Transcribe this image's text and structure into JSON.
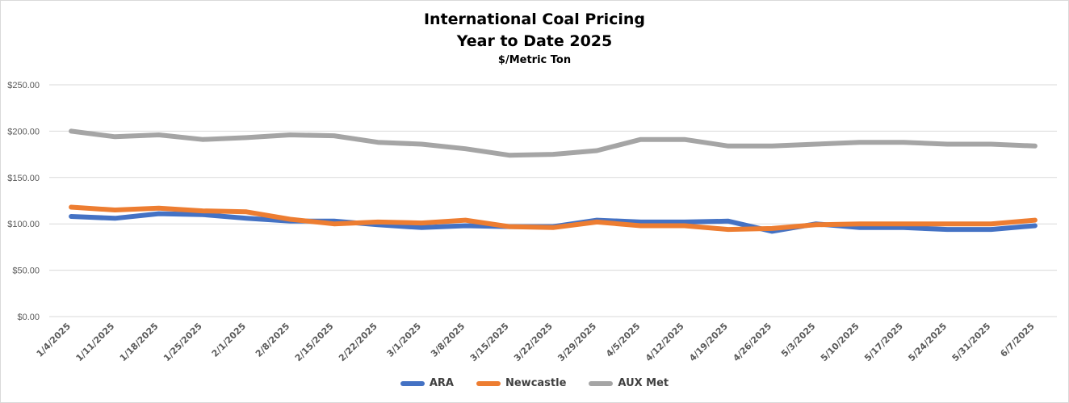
{
  "chart_data": {
    "type": "line",
    "title": "International Coal Pricing",
    "title_line2": "Year to Date 2025",
    "subtitle": "$/Metric Ton",
    "xlabel": "",
    "ylabel": "",
    "ylim": [
      0,
      250
    ],
    "yticks": [
      "$0.00",
      "$50.00",
      "$100.00",
      "$150.00",
      "$200.00",
      "$250.00"
    ],
    "ytick_values": [
      0,
      50,
      100,
      150,
      200,
      250
    ],
    "grid": true,
    "legend_position": "bottom",
    "categories": [
      "1/4/2025",
      "1/11/2025",
      "1/18/2025",
      "1/25/2025",
      "2/1/2025",
      "2/8/2025",
      "2/15/2025",
      "2/22/2025",
      "3/1/2025",
      "3/8/2025",
      "3/15/2025",
      "3/22/2025",
      "3/29/2025",
      "4/5/2025",
      "4/12/2025",
      "4/19/2025",
      "4/26/2025",
      "5/3/2025",
      "5/10/2025",
      "5/17/2025",
      "5/24/2025",
      "5/31/2025",
      "6/7/2025"
    ],
    "series": [
      {
        "name": "ARA",
        "color": "#4472c4",
        "values": [
          108,
          106,
          111,
          110,
          106,
          103,
          103,
          99,
          96,
          98,
          97,
          97,
          104,
          102,
          102,
          103,
          92,
          100,
          96,
          96,
          94,
          94,
          98
        ]
      },
      {
        "name": "Newcastle",
        "color": "#ed7d31",
        "values": [
          118,
          115,
          117,
          114,
          113,
          105,
          100,
          102,
          101,
          104,
          97,
          96,
          102,
          98,
          98,
          94,
          95,
          99,
          100,
          100,
          100,
          100,
          104
        ]
      },
      {
        "name": "AUX Met",
        "color": "#a5a5a5",
        "values": [
          200,
          194,
          196,
          191,
          193,
          196,
          195,
          188,
          186,
          181,
          174,
          175,
          179,
          191,
          191,
          184,
          184,
          186,
          188,
          188,
          186,
          186,
          184
        ]
      }
    ]
  }
}
